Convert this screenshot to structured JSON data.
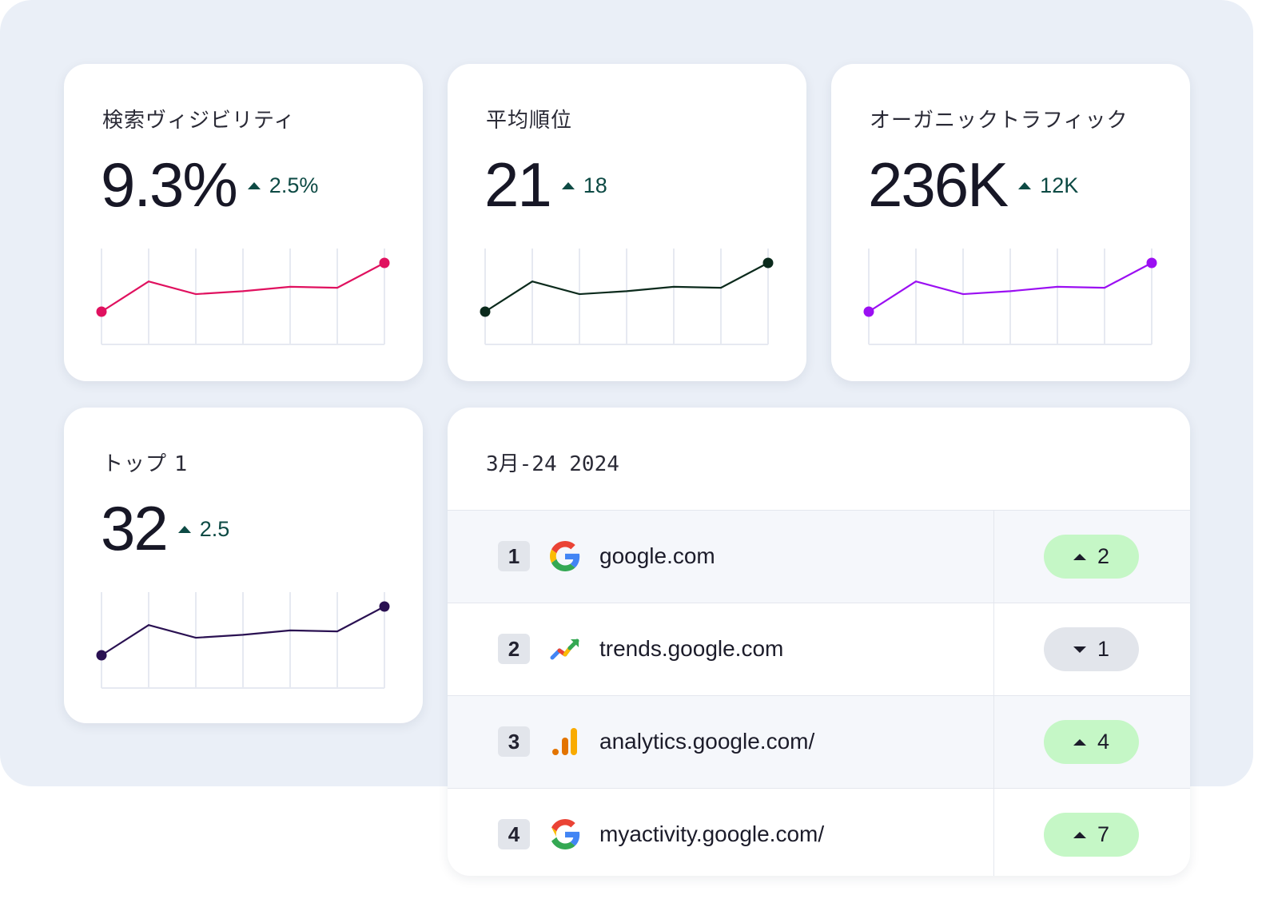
{
  "metrics": [
    {
      "title": "検索ヴィジビリティ",
      "value": "9.3%",
      "delta": "2.5%",
      "color": "#e0115f",
      "chart_data": {
        "type": "line",
        "values": [
          0,
          0.62,
          0.36,
          0.42,
          0.51,
          0.49,
          1.0
        ]
      }
    },
    {
      "title": "平均順位",
      "value": "21",
      "delta": "18",
      "color": "#0b2a1c",
      "chart_data": {
        "type": "line",
        "values": [
          0,
          0.62,
          0.36,
          0.42,
          0.51,
          0.49,
          1.0
        ]
      }
    },
    {
      "title": "オーガニックトラフィック",
      "value": "236K",
      "delta": "12K",
      "color": "#9b0ff2",
      "chart_data": {
        "type": "line",
        "values": [
          0,
          0.62,
          0.36,
          0.42,
          0.51,
          0.49,
          1.0
        ]
      }
    },
    {
      "title": "トップ 1",
      "value": "32",
      "delta": "2.5",
      "color": "#2a1152",
      "chart_data": {
        "type": "line",
        "values": [
          0,
          0.62,
          0.36,
          0.42,
          0.51,
          0.49,
          1.0
        ]
      }
    }
  ],
  "table": {
    "date": "3月-24 2024",
    "rows": [
      {
        "rank": "1",
        "icon": "google-icon",
        "domain": "google.com",
        "direction": "up",
        "change": "2"
      },
      {
        "rank": "2",
        "icon": "trends-icon",
        "domain": "trends.google.com",
        "direction": "down",
        "change": "1"
      },
      {
        "rank": "3",
        "icon": "analytics-icon",
        "domain": "analytics.google.com/",
        "direction": "up",
        "change": "4"
      },
      {
        "rank": "4",
        "icon": "google-icon",
        "domain": "myactivity.google.com/",
        "direction": "up",
        "change": "7"
      }
    ]
  },
  "colors": {
    "background": "#eaeff7",
    "positive": "#c5f7c6",
    "neutral": "#e2e5eb",
    "delta_text": "#0d4a44"
  }
}
